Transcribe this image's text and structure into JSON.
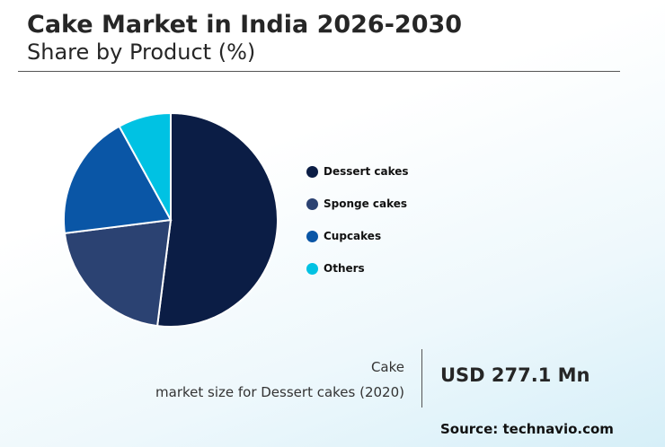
{
  "header": {
    "title": "Cake Market in India 2026-2030",
    "subtitle": "Share by Product (%)"
  },
  "chart_data": {
    "type": "pie",
    "categories": [
      "Dessert cakes",
      "Sponge cakes",
      "Cupcakes",
      "Others"
    ],
    "values": [
      52,
      21,
      19,
      8
    ],
    "colors": [
      "#0b1d45",
      "#2b4272",
      "#0a56a6",
      "#00c2e3"
    ],
    "legend_position": "right"
  },
  "info": {
    "line1": "Cake",
    "line2": "market size for Dessert cakes (2020)",
    "value": "USD 277.1 Mn"
  },
  "source": "Source: technavio.com"
}
